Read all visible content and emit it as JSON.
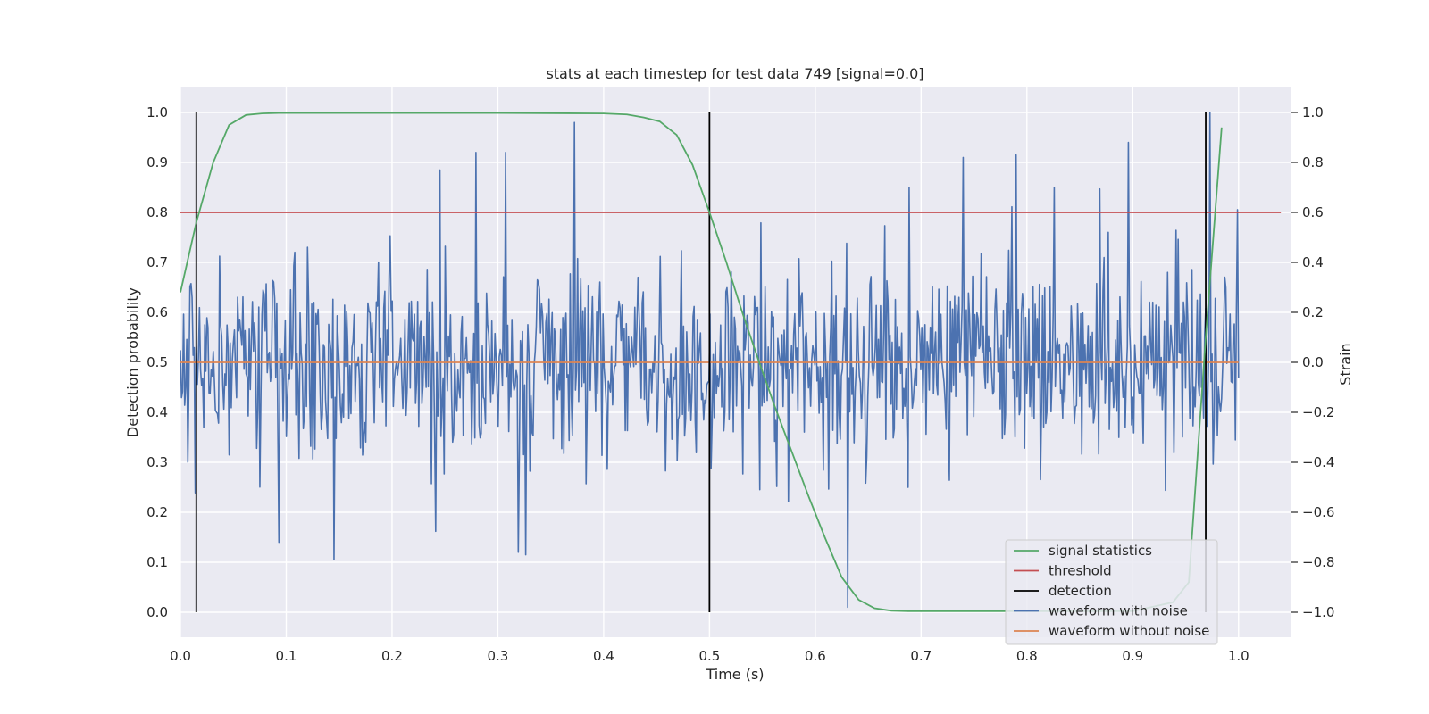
{
  "chart_data": {
    "type": "line",
    "title": "stats at each timestep for test data 749 [signal=0.0]",
    "xlabel": "Time (s)",
    "ylabel": "Detection probability",
    "y2label": "Strain",
    "xlim": [
      0.0,
      1.05
    ],
    "ylim": [
      -0.05,
      1.05
    ],
    "y2lim": [
      -1.1,
      1.1
    ],
    "grid": true,
    "legend_position": "lower right",
    "x_ticks": [
      "0.0",
      "0.1",
      "0.2",
      "0.3",
      "0.4",
      "0.5",
      "0.6",
      "0.7",
      "0.8",
      "0.9",
      "1.0"
    ],
    "y_ticks": [
      "0.0",
      "0.1",
      "0.2",
      "0.3",
      "0.4",
      "0.5",
      "0.6",
      "0.7",
      "0.8",
      "0.9",
      "1.0"
    ],
    "y2_ticks": [
      "−1.0",
      "−0.8",
      "−0.6",
      "−0.4",
      "−0.2",
      "0.0",
      "0.2",
      "0.4",
      "0.6",
      "0.8",
      "1.0"
    ],
    "y2_tick_values": [
      -1.0,
      -0.8,
      -0.6,
      -0.4,
      -0.2,
      0.0,
      0.2,
      0.4,
      0.6,
      0.8,
      1.0
    ],
    "series": [
      {
        "name": "signal statistics",
        "axis": "left",
        "color": "#55a868",
        "x": [
          0.0,
          0.015,
          0.031,
          0.046,
          0.062,
          0.077,
          0.093,
          0.2,
          0.3,
          0.4,
          0.422,
          0.438,
          0.453,
          0.469,
          0.484,
          0.5,
          0.516,
          0.531,
          0.547,
          0.562,
          0.578,
          0.594,
          0.609,
          0.625,
          0.641,
          0.656,
          0.672,
          0.688,
          0.8,
          0.9,
          0.938,
          0.953,
          0.969,
          0.984
        ],
        "values": [
          0.64,
          0.78,
          0.9,
          0.975,
          0.995,
          0.998,
          0.999,
          0.999,
          0.999,
          0.998,
          0.996,
          0.99,
          0.982,
          0.955,
          0.895,
          0.8,
          0.7,
          0.6,
          0.5,
          0.41,
          0.32,
          0.23,
          0.15,
          0.07,
          0.025,
          0.008,
          0.003,
          0.002,
          0.002,
          0.002,
          0.02,
          0.06,
          0.55,
          0.97
        ]
      },
      {
        "name": "threshold",
        "axis": "left",
        "color": "#c44e52",
        "x": [
          0.0,
          1.04
        ],
        "values": [
          0.8,
          0.8
        ]
      },
      {
        "name": "detection",
        "axis": "left",
        "color": "#000000",
        "type": "vlines",
        "x": [
          0.015,
          0.5,
          0.969
        ],
        "ymin": 0.0,
        "ymax": 1.0
      },
      {
        "name": "waveform with noise",
        "axis": "right",
        "color": "#4c72b0",
        "type": "noise",
        "x_start": 0.0,
        "x_end": 1.0,
        "n_points": 1000,
        "mean": 0.0,
        "std": 0.2,
        "min": -0.98,
        "max": 1.0,
        "spikes": [
          {
            "x": 0.372,
            "value": 0.96
          },
          {
            "x": 0.631,
            "value": -0.98
          },
          {
            "x": 0.973,
            "value": 1.0
          },
          {
            "x": 0.145,
            "value": -0.79
          },
          {
            "x": 0.093,
            "value": -0.72
          },
          {
            "x": 0.279,
            "value": 0.84
          },
          {
            "x": 0.245,
            "value": 0.77
          },
          {
            "x": 0.307,
            "value": 0.84
          },
          {
            "x": 0.896,
            "value": 0.88
          },
          {
            "x": 0.74,
            "value": 0.82
          },
          {
            "x": 0.79,
            "value": 0.83
          },
          {
            "x": 0.826,
            "value": 0.7
          },
          {
            "x": 0.689,
            "value": 0.7
          },
          {
            "x": 0.319,
            "value": -0.76
          },
          {
            "x": 0.326,
            "value": -0.77
          }
        ]
      },
      {
        "name": "waveform without noise",
        "axis": "right",
        "color": "#dd8452",
        "x": [
          0.0,
          1.0
        ],
        "values": [
          0.0,
          0.0
        ]
      }
    ],
    "legend": [
      "signal statistics",
      "threshold",
      "detection",
      "waveform with noise",
      "waveform without noise"
    ]
  }
}
